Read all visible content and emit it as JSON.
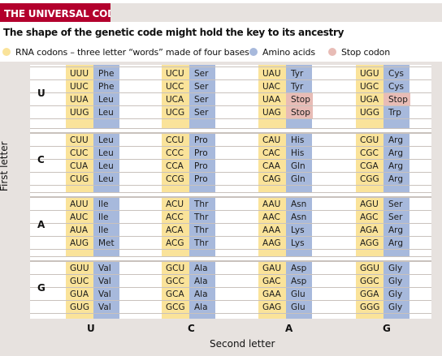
{
  "title": "THE UNIVERSAL CODE",
  "subtitle": "The shape of the genetic code might hold the key to its ancestry",
  "legend": {
    "codons": "RNA codons – three letter “words” made of four bases",
    "amino": "Amino acids",
    "stop": "Stop codon"
  },
  "colors": {
    "title_bar": "#b3002d",
    "codon": "#fae39a",
    "amino": "#a7b9dc",
    "stop": "#e8bcb6",
    "background": "#e7e2df"
  },
  "axis": {
    "first_letter": "First letter",
    "second_letter": "Second letter",
    "first_bases": [
      "U",
      "C",
      "A",
      "G"
    ],
    "second_bases": [
      "U",
      "C",
      "A",
      "G"
    ]
  },
  "code": [
    [
      [
        [
          "UUU",
          "Phe"
        ],
        [
          "UUC",
          "Phe"
        ],
        [
          "UUA",
          "Leu"
        ],
        [
          "UUG",
          "Leu"
        ]
      ],
      [
        [
          "UCU",
          "Ser"
        ],
        [
          "UCC",
          "Ser"
        ],
        [
          "UCA",
          "Ser"
        ],
        [
          "UCG",
          "Ser"
        ]
      ],
      [
        [
          "UAU",
          "Tyr"
        ],
        [
          "UAC",
          "Tyr"
        ],
        [
          "UAA",
          "Stop"
        ],
        [
          "UAG",
          "Stop"
        ]
      ],
      [
        [
          "UGU",
          "Cys"
        ],
        [
          "UGC",
          "Cys"
        ],
        [
          "UGA",
          "Stop"
        ],
        [
          "UGG",
          "Trp"
        ]
      ]
    ],
    [
      [
        [
          "CUU",
          "Leu"
        ],
        [
          "CUC",
          "Leu"
        ],
        [
          "CUA",
          "Leu"
        ],
        [
          "CUG",
          "Leu"
        ]
      ],
      [
        [
          "CCU",
          "Pro"
        ],
        [
          "CCC",
          "Pro"
        ],
        [
          "CCA",
          "Pro"
        ],
        [
          "CCG",
          "Pro"
        ]
      ],
      [
        [
          "CAU",
          "His"
        ],
        [
          "CAC",
          "His"
        ],
        [
          "CAA",
          "Gln"
        ],
        [
          "CAG",
          "Gln"
        ]
      ],
      [
        [
          "CGU",
          "Arg"
        ],
        [
          "CGC",
          "Arg"
        ],
        [
          "CGA",
          "Arg"
        ],
        [
          "CGG",
          "Arg"
        ]
      ]
    ],
    [
      [
        [
          "AUU",
          "Ile"
        ],
        [
          "AUC",
          "Ile"
        ],
        [
          "AUA",
          "Ile"
        ],
        [
          "AUG",
          "Met"
        ]
      ],
      [
        [
          "ACU",
          "Thr"
        ],
        [
          "ACC",
          "Thr"
        ],
        [
          "ACA",
          "Thr"
        ],
        [
          "ACG",
          "Thr"
        ]
      ],
      [
        [
          "AAU",
          "Asn"
        ],
        [
          "AAC",
          "Asn"
        ],
        [
          "AAA",
          "Lys"
        ],
        [
          "AAG",
          "Lys"
        ]
      ],
      [
        [
          "AGU",
          "Ser"
        ],
        [
          "AGC",
          "Ser"
        ],
        [
          "AGA",
          "Arg"
        ],
        [
          "AGG",
          "Arg"
        ]
      ]
    ],
    [
      [
        [
          "GUU",
          "Val"
        ],
        [
          "GUC",
          "Val"
        ],
        [
          "GUA",
          "Val"
        ],
        [
          "GUG",
          "Val"
        ]
      ],
      [
        [
          "GCU",
          "Ala"
        ],
        [
          "GCC",
          "Ala"
        ],
        [
          "GCA",
          "Ala"
        ],
        [
          "GCG",
          "Ala"
        ]
      ],
      [
        [
          "GAU",
          "Asp"
        ],
        [
          "GAC",
          "Asp"
        ],
        [
          "GAA",
          "Glu"
        ],
        [
          "GAG",
          "Glu"
        ]
      ],
      [
        [
          "GGU",
          "Gly"
        ],
        [
          "GGC",
          "Gly"
        ],
        [
          "GGA",
          "Gly"
        ],
        [
          "GGG",
          "Gly"
        ]
      ]
    ]
  ]
}
